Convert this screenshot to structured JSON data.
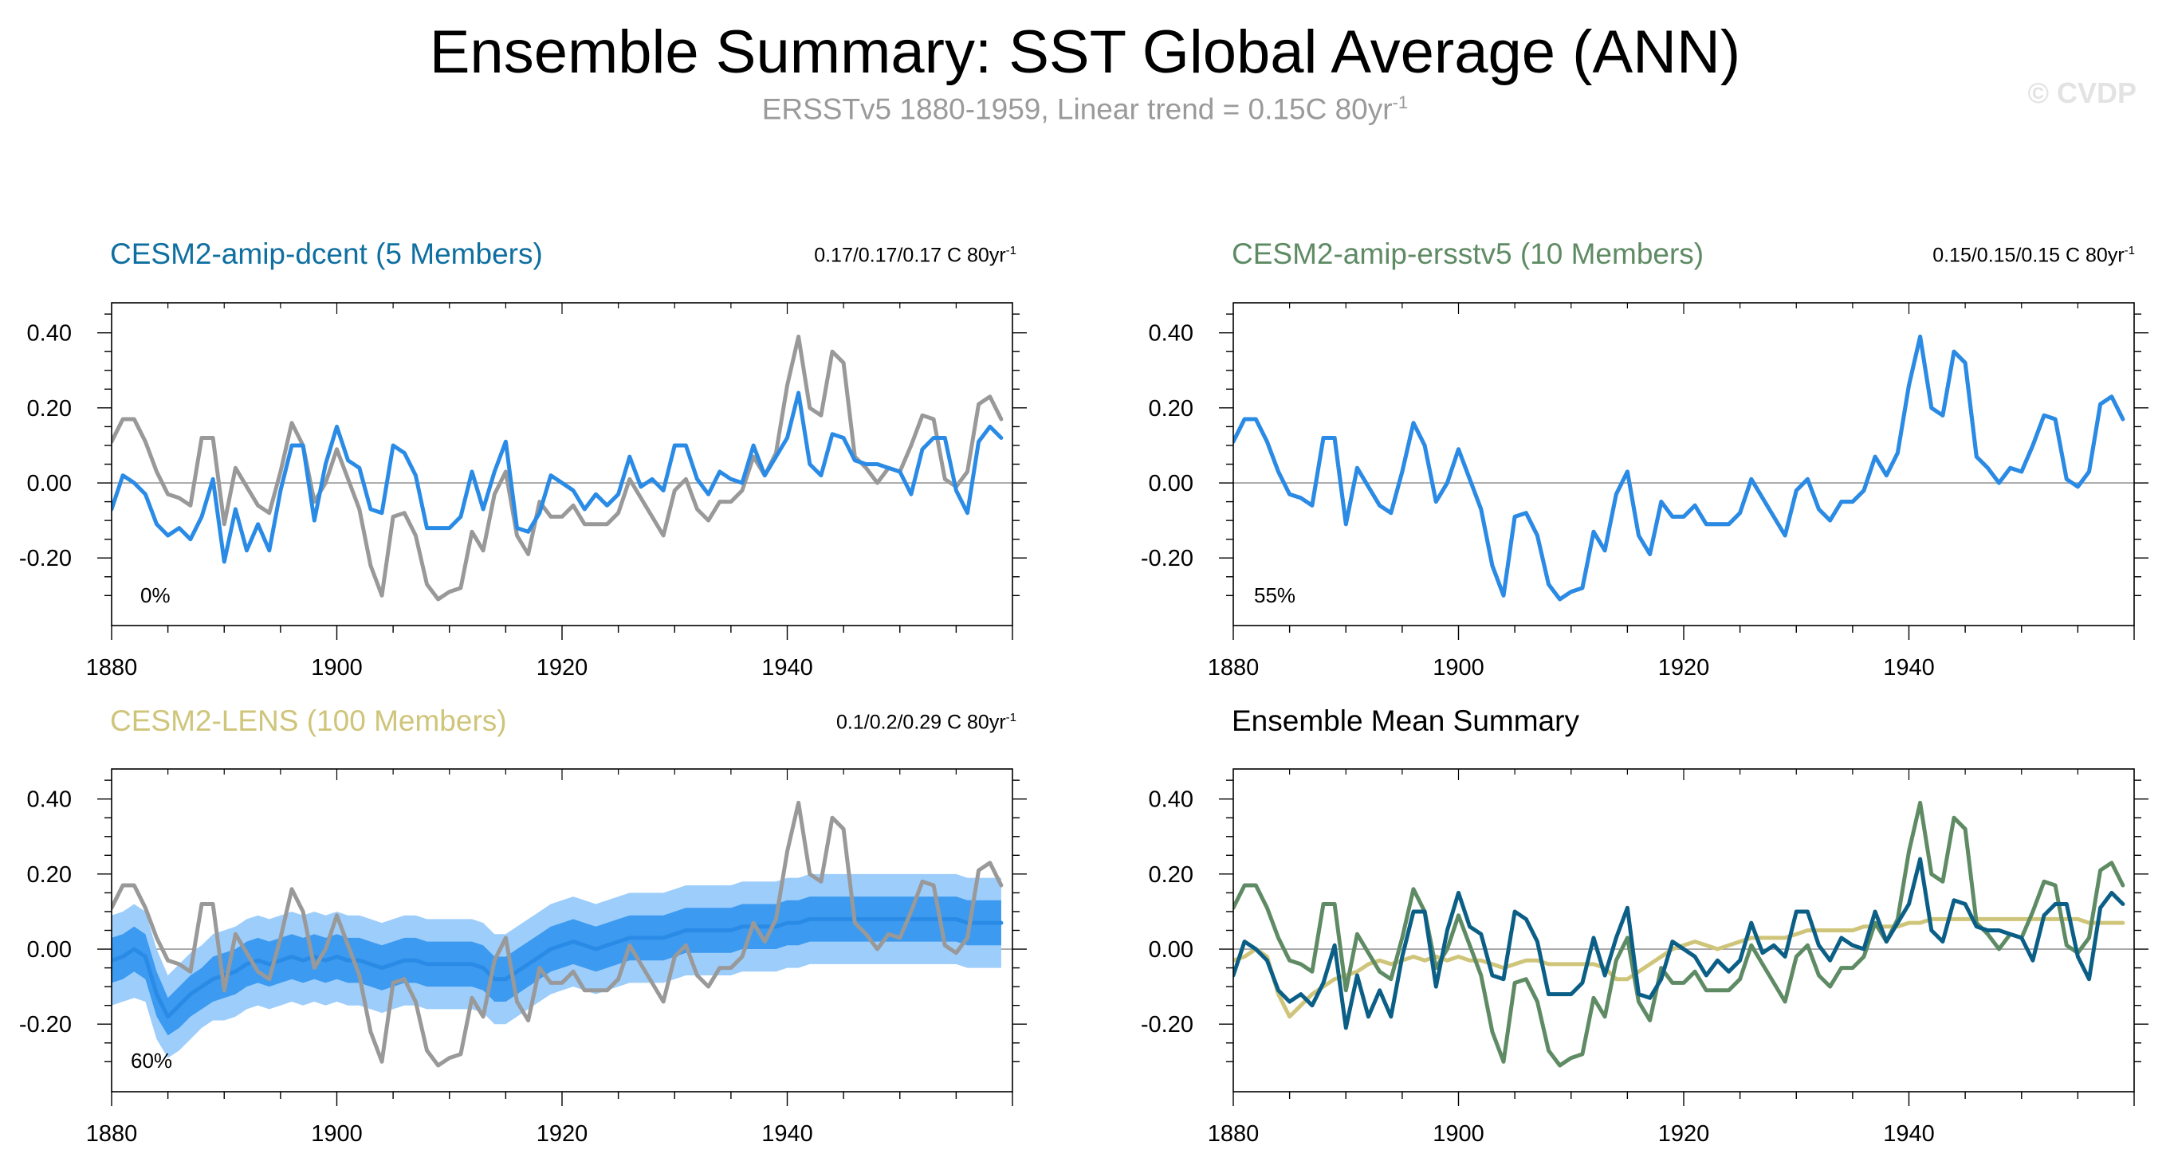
{
  "figure": {
    "title": "Ensemble Summary: SST Global Average (ANN)",
    "subtitle_main": "ERSSTv5 1880-1959, Linear trend = 0.15C 80yr",
    "subtitle_sup": "-1",
    "watermark": "© CVDP"
  },
  "colors": {
    "obs": "#999999",
    "model_line": "#2a8be6",
    "band_outer": "#9dcdfb",
    "band_inner": "#3c9af0",
    "dcent": "#0b5f86",
    "ersstv5": "#5e8b64",
    "lens": "#cfc57a",
    "axis": "#000000",
    "zero_line": "#999999"
  },
  "panels": [
    {
      "title": "CESM2-amip-dcent (5 Members)",
      "title_color": "#0f6fa0",
      "trend_main": "0.17/0.17/0.17 C 80yr",
      "trend_sup": "-1",
      "percent": "0%"
    },
    {
      "title": "CESM2-amip-ersstv5 (10 Members)",
      "title_color": "#5e8b64",
      "trend_main": "0.15/0.15/0.15 C 80yr",
      "trend_sup": "-1",
      "percent": "55%"
    },
    {
      "title": "CESM2-LENS (100 Members)",
      "title_color": "#cfc57a",
      "trend_main": "0.1/0.2/0.29 C 80yr",
      "trend_sup": "-1",
      "percent": "60%"
    },
    {
      "title": "Ensemble Mean Summary",
      "title_color": "#000000",
      "trend_main": "",
      "trend_sup": "",
      "percent": ""
    }
  ],
  "chart_data": {
    "type": "line",
    "x": [
      1880,
      1881,
      1882,
      1883,
      1884,
      1885,
      1886,
      1887,
      1888,
      1889,
      1890,
      1891,
      1892,
      1893,
      1894,
      1895,
      1896,
      1897,
      1898,
      1899,
      1900,
      1901,
      1902,
      1903,
      1904,
      1905,
      1906,
      1907,
      1908,
      1909,
      1910,
      1911,
      1912,
      1913,
      1914,
      1915,
      1916,
      1917,
      1918,
      1919,
      1920,
      1921,
      1922,
      1923,
      1924,
      1925,
      1926,
      1927,
      1928,
      1929,
      1930,
      1931,
      1932,
      1933,
      1934,
      1935,
      1936,
      1937,
      1938,
      1939,
      1940,
      1941,
      1942,
      1943,
      1944,
      1945,
      1946,
      1947,
      1948,
      1949,
      1950,
      1951,
      1952,
      1953,
      1954,
      1955,
      1956,
      1957,
      1958,
      1959
    ],
    "xlim": [
      1880,
      1960
    ],
    "ylim": [
      -0.38,
      0.48
    ],
    "x_ticks": [
      "1880",
      "1900",
      "1920",
      "1940"
    ],
    "x_tick_values": [
      1880,
      1900,
      1920,
      1940
    ],
    "y_ticks": [
      "0.40",
      "0.20",
      "0.00",
      "-0.20"
    ],
    "y_tick_values": [
      0.4,
      0.2,
      0.0,
      -0.2
    ],
    "series": {
      "ersstv5_obs": [
        0.11,
        0.17,
        0.17,
        0.11,
        0.03,
        -0.03,
        -0.04,
        -0.06,
        0.12,
        0.12,
        -0.11,
        0.04,
        -0.01,
        -0.06,
        -0.08,
        0.03,
        0.16,
        0.1,
        -0.05,
        0.0,
        0.09,
        0.01,
        -0.07,
        -0.22,
        -0.3,
        -0.09,
        -0.08,
        -0.14,
        -0.27,
        -0.31,
        -0.29,
        -0.28,
        -0.13,
        -0.18,
        -0.03,
        0.03,
        -0.14,
        -0.19,
        -0.05,
        -0.09,
        -0.09,
        -0.06,
        -0.11,
        -0.11,
        -0.11,
        -0.08,
        0.01,
        -0.04,
        -0.09,
        -0.14,
        -0.02,
        0.01,
        -0.07,
        -0.1,
        -0.05,
        -0.05,
        -0.02,
        0.07,
        0.02,
        0.08,
        0.26,
        0.39,
        0.2,
        0.18,
        0.35,
        0.32,
        0.07,
        0.04,
        0.0,
        0.04,
        0.03,
        0.1,
        0.18,
        0.17,
        0.01,
        -0.01,
        0.03,
        0.21,
        0.23,
        0.17
      ],
      "cesm2_amip_dcent": [
        -0.07,
        0.02,
        0.0,
        -0.03,
        -0.11,
        -0.14,
        -0.12,
        -0.15,
        -0.09,
        0.01,
        -0.21,
        -0.07,
        -0.18,
        -0.11,
        -0.18,
        -0.02,
        0.1,
        0.1,
        -0.1,
        0.05,
        0.15,
        0.06,
        0.04,
        -0.07,
        -0.08,
        0.1,
        0.08,
        0.02,
        -0.12,
        -0.12,
        -0.12,
        -0.09,
        0.03,
        -0.07,
        0.03,
        0.11,
        -0.12,
        -0.13,
        -0.08,
        0.02,
        0.0,
        -0.02,
        -0.07,
        -0.03,
        -0.06,
        -0.03,
        0.07,
        -0.01,
        0.01,
        -0.02,
        0.1,
        0.1,
        0.01,
        -0.03,
        0.03,
        0.01,
        0.0,
        0.1,
        0.02,
        0.07,
        0.12,
        0.24,
        0.05,
        0.02,
        0.13,
        0.12,
        0.06,
        0.05,
        0.05,
        0.04,
        0.03,
        -0.03,
        0.09,
        0.12,
        0.12,
        -0.02,
        -0.08,
        0.11,
        0.15,
        0.12
      ],
      "cesm2_lens_median": [
        -0.03,
        -0.02,
        0.0,
        -0.02,
        -0.12,
        -0.18,
        -0.15,
        -0.12,
        -0.1,
        -0.08,
        -0.07,
        -0.06,
        -0.04,
        -0.03,
        -0.04,
        -0.03,
        -0.02,
        -0.03,
        -0.02,
        -0.03,
        -0.02,
        -0.03,
        -0.03,
        -0.04,
        -0.05,
        -0.04,
        -0.03,
        -0.03,
        -0.04,
        -0.04,
        -0.04,
        -0.04,
        -0.04,
        -0.05,
        -0.08,
        -0.08,
        -0.06,
        -0.04,
        -0.02,
        0.0,
        0.01,
        0.02,
        0.01,
        0.0,
        0.01,
        0.02,
        0.03,
        0.03,
        0.03,
        0.03,
        0.04,
        0.05,
        0.05,
        0.05,
        0.05,
        0.05,
        0.06,
        0.06,
        0.06,
        0.06,
        0.07,
        0.07,
        0.08,
        0.08,
        0.08,
        0.08,
        0.08,
        0.08,
        0.08,
        0.08,
        0.08,
        0.08,
        0.08,
        0.08,
        0.08,
        0.08,
        0.07,
        0.07,
        0.07,
        0.07
      ],
      "cesm2_lens_p10": [
        -0.15,
        -0.14,
        -0.13,
        -0.14,
        -0.24,
        -0.29,
        -0.27,
        -0.24,
        -0.21,
        -0.19,
        -0.19,
        -0.18,
        -0.16,
        -0.15,
        -0.16,
        -0.15,
        -0.14,
        -0.15,
        -0.14,
        -0.15,
        -0.14,
        -0.15,
        -0.15,
        -0.16,
        -0.17,
        -0.16,
        -0.15,
        -0.15,
        -0.16,
        -0.16,
        -0.16,
        -0.16,
        -0.16,
        -0.17,
        -0.2,
        -0.2,
        -0.18,
        -0.16,
        -0.14,
        -0.12,
        -0.11,
        -0.1,
        -0.11,
        -0.12,
        -0.11,
        -0.1,
        -0.09,
        -0.09,
        -0.09,
        -0.09,
        -0.08,
        -0.07,
        -0.07,
        -0.07,
        -0.07,
        -0.07,
        -0.06,
        -0.06,
        -0.06,
        -0.06,
        -0.05,
        -0.05,
        -0.04,
        -0.04,
        -0.04,
        -0.04,
        -0.04,
        -0.04,
        -0.04,
        -0.04,
        -0.04,
        -0.04,
        -0.04,
        -0.04,
        -0.04,
        -0.04,
        -0.05,
        -0.05,
        -0.05,
        -0.05
      ],
      "cesm2_lens_p25": [
        -0.09,
        -0.08,
        -0.06,
        -0.08,
        -0.18,
        -0.23,
        -0.21,
        -0.18,
        -0.16,
        -0.14,
        -0.13,
        -0.12,
        -0.1,
        -0.09,
        -0.1,
        -0.09,
        -0.08,
        -0.09,
        -0.08,
        -0.09,
        -0.08,
        -0.09,
        -0.09,
        -0.1,
        -0.11,
        -0.1,
        -0.09,
        -0.09,
        -0.1,
        -0.1,
        -0.1,
        -0.1,
        -0.1,
        -0.11,
        -0.14,
        -0.14,
        -0.12,
        -0.1,
        -0.08,
        -0.06,
        -0.05,
        -0.04,
        -0.05,
        -0.06,
        -0.05,
        -0.04,
        -0.03,
        -0.03,
        -0.03,
        -0.03,
        -0.02,
        -0.01,
        -0.01,
        -0.01,
        -0.01,
        -0.01,
        0.0,
        0.0,
        0.0,
        0.0,
        0.01,
        0.01,
        0.02,
        0.02,
        0.02,
        0.02,
        0.02,
        0.02,
        0.02,
        0.02,
        0.02,
        0.02,
        0.02,
        0.02,
        0.02,
        0.02,
        0.01,
        0.01,
        0.01,
        0.01
      ],
      "cesm2_lens_p75": [
        0.03,
        0.04,
        0.06,
        0.04,
        -0.06,
        -0.13,
        -0.1,
        -0.07,
        -0.05,
        -0.02,
        -0.01,
        0.0,
        0.02,
        0.03,
        0.02,
        0.03,
        0.04,
        0.03,
        0.04,
        0.03,
        0.04,
        0.03,
        0.03,
        0.02,
        0.01,
        0.02,
        0.03,
        0.03,
        0.02,
        0.02,
        0.02,
        0.02,
        0.02,
        0.01,
        -0.02,
        -0.02,
        0.0,
        0.02,
        0.04,
        0.06,
        0.07,
        0.08,
        0.07,
        0.06,
        0.07,
        0.08,
        0.09,
        0.09,
        0.09,
        0.09,
        0.1,
        0.11,
        0.11,
        0.11,
        0.11,
        0.11,
        0.12,
        0.12,
        0.12,
        0.12,
        0.13,
        0.13,
        0.14,
        0.14,
        0.14,
        0.14,
        0.14,
        0.14,
        0.14,
        0.14,
        0.14,
        0.14,
        0.14,
        0.14,
        0.14,
        0.14,
        0.13,
        0.13,
        0.13,
        0.13
      ],
      "cesm2_lens_p90": [
        0.09,
        0.1,
        0.12,
        0.1,
        0.0,
        -0.07,
        -0.04,
        -0.01,
        0.01,
        0.04,
        0.05,
        0.06,
        0.08,
        0.09,
        0.08,
        0.09,
        0.1,
        0.09,
        0.1,
        0.09,
        0.1,
        0.09,
        0.09,
        0.08,
        0.07,
        0.08,
        0.09,
        0.09,
        0.08,
        0.08,
        0.08,
        0.08,
        0.08,
        0.07,
        0.04,
        0.04,
        0.06,
        0.08,
        0.1,
        0.12,
        0.13,
        0.14,
        0.13,
        0.12,
        0.13,
        0.14,
        0.15,
        0.15,
        0.15,
        0.15,
        0.16,
        0.17,
        0.17,
        0.17,
        0.17,
        0.17,
        0.18,
        0.18,
        0.18,
        0.18,
        0.19,
        0.19,
        0.2,
        0.2,
        0.2,
        0.2,
        0.2,
        0.2,
        0.2,
        0.2,
        0.2,
        0.2,
        0.2,
        0.2,
        0.2,
        0.2,
        0.19,
        0.19,
        0.19,
        0.19
      ]
    }
  }
}
